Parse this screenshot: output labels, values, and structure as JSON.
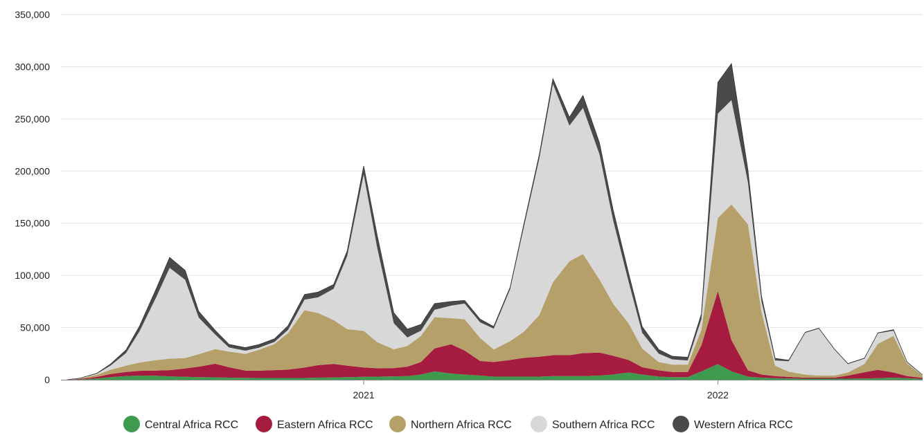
{
  "chart_data": {
    "type": "area",
    "stacked": true,
    "grid": true,
    "legend_placement": "bottom",
    "ylim": [
      0,
      350000
    ],
    "y_ticks": [
      {
        "value": 0,
        "label": "0"
      },
      {
        "value": 50000,
        "label": "50,000"
      },
      {
        "value": 100000,
        "label": "100,000"
      },
      {
        "value": 150000,
        "label": "150,000"
      },
      {
        "value": 200000,
        "label": "200,000"
      },
      {
        "value": 250000,
        "label": "250,000"
      },
      {
        "value": 300000,
        "label": "300,000"
      },
      {
        "value": 350000,
        "label": "350,000"
      }
    ],
    "x_ticks": [
      {
        "value": "2021-01-01",
        "label": "2021"
      },
      {
        "value": "2022-01-01",
        "label": "2022"
      }
    ],
    "xlim": [
      "2020-02-24",
      "2022-07-31"
    ],
    "x": [
      "2020-03-01",
      "2020-03-15",
      "2020-04-01",
      "2020-04-15",
      "2020-05-01",
      "2020-05-15",
      "2020-06-01",
      "2020-06-15",
      "2020-07-01",
      "2020-07-15",
      "2020-08-01",
      "2020-08-15",
      "2020-09-01",
      "2020-09-15",
      "2020-10-01",
      "2020-10-15",
      "2020-11-01",
      "2020-11-15",
      "2020-12-01",
      "2020-12-15",
      "2021-01-01",
      "2021-01-15",
      "2021-02-01",
      "2021-02-15",
      "2021-03-01",
      "2021-03-15",
      "2021-04-01",
      "2021-04-15",
      "2021-05-01",
      "2021-05-15",
      "2021-06-01",
      "2021-06-15",
      "2021-07-01",
      "2021-07-15",
      "2021-08-01",
      "2021-08-15",
      "2021-09-01",
      "2021-09-15",
      "2021-10-01",
      "2021-10-15",
      "2021-11-01",
      "2021-11-15",
      "2021-12-01",
      "2021-12-15",
      "2022-01-01",
      "2022-01-15",
      "2022-02-01",
      "2022-02-15",
      "2022-03-01",
      "2022-03-15",
      "2022-04-01",
      "2022-04-15",
      "2022-05-01",
      "2022-05-15",
      "2022-06-01",
      "2022-06-15",
      "2022-07-01",
      "2022-07-15",
      "2022-07-31"
    ],
    "series": [
      {
        "name": "Central Africa RCC",
        "color": "#3d9a4e",
        "values": [
          0,
          300,
          1200,
          2500,
          3500,
          4000,
          3800,
          3200,
          2800,
          2500,
          2300,
          2000,
          1800,
          1700,
          1700,
          1700,
          1700,
          2000,
          2200,
          2500,
          2800,
          3000,
          3200,
          3500,
          5000,
          8000,
          6000,
          5000,
          4000,
          3000,
          3000,
          3000,
          3000,
          3500,
          3500,
          3500,
          4000,
          5000,
          7000,
          5000,
          3000,
          2500,
          2500,
          8000,
          15000,
          8000,
          3000,
          2000,
          1500,
          1200,
          1000,
          1000,
          1000,
          1000,
          1200,
          1500,
          2000,
          1500,
          800
        ]
      },
      {
        "name": "Eastern Africa RCC",
        "color": "#a51c40",
        "values": [
          0,
          500,
          1500,
          3000,
          4000,
          4500,
          5000,
          6000,
          8000,
          10000,
          13000,
          10000,
          7000,
          7000,
          7500,
          8000,
          10000,
          12000,
          13000,
          11000,
          9000,
          8000,
          8000,
          9000,
          12000,
          22000,
          28000,
          23000,
          14000,
          14000,
          16000,
          18000,
          19000,
          20000,
          20000,
          22000,
          22000,
          18000,
          12000,
          7000,
          6000,
          5000,
          5000,
          25000,
          70000,
          30000,
          6000,
          3000,
          2000,
          1500,
          1000,
          1000,
          1000,
          3000,
          6000,
          8000,
          5000,
          2000,
          1000
        ]
      },
      {
        "name": "Northern Africa RCC",
        "color": "#b6a06a",
        "values": [
          0,
          500,
          2000,
          4000,
          6000,
          8000,
          10000,
          11000,
          10000,
          12000,
          14000,
          15000,
          16000,
          20000,
          25000,
          35000,
          55000,
          50000,
          42000,
          35000,
          35000,
          25000,
          18000,
          20000,
          25000,
          30000,
          25000,
          30000,
          22000,
          12000,
          18000,
          25000,
          40000,
          70000,
          90000,
          95000,
          70000,
          50000,
          35000,
          18000,
          8000,
          7000,
          7000,
          15000,
          70000,
          130000,
          140000,
          60000,
          10000,
          5000,
          3000,
          2000,
          2000,
          3000,
          8000,
          25000,
          35000,
          12000,
          2000
        ]
      },
      {
        "name": "Southern Africa RCC",
        "color": "#d8d8d8",
        "values": [
          0,
          200,
          1000,
          4000,
          12000,
          30000,
          60000,
          87000,
          75000,
          35000,
          14000,
          4000,
          3000,
          2000,
          2000,
          3000,
          10000,
          15000,
          30000,
          70000,
          150000,
          90000,
          25000,
          8000,
          5000,
          7000,
          12000,
          15000,
          15000,
          20000,
          50000,
          100000,
          150000,
          190000,
          130000,
          140000,
          120000,
          80000,
          40000,
          15000,
          8000,
          5000,
          4000,
          10000,
          100000,
          100000,
          40000,
          10000,
          5000,
          10000,
          40000,
          45000,
          25000,
          8000,
          5000,
          10000,
          5000,
          1000,
          500
        ]
      },
      {
        "name": "Western Africa RCC",
        "color": "#4a4a4a",
        "values": [
          0,
          100,
          500,
          1500,
          3000,
          5000,
          8000,
          10000,
          9000,
          6000,
          4000,
          3000,
          3000,
          3000,
          3000,
          4000,
          5000,
          5000,
          4000,
          5000,
          8000,
          12000,
          10000,
          8000,
          6000,
          6000,
          4000,
          3000,
          3000,
          2000,
          2000,
          3000,
          4000,
          5000,
          8000,
          12000,
          11000,
          10000,
          8000,
          6000,
          4000,
          3000,
          3000,
          5000,
          30000,
          35000,
          12000,
          5000,
          2000,
          1000,
          500,
          500,
          500,
          500,
          500,
          500,
          1000,
          500,
          200
        ]
      }
    ]
  }
}
